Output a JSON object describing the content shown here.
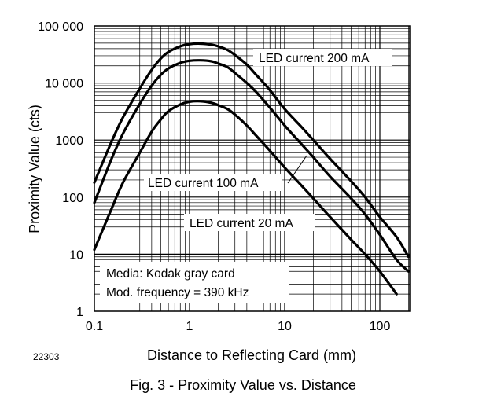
{
  "figure_id": "22303",
  "caption": "Fig. 3 - Proximity Value vs. Distance",
  "chart_data": {
    "type": "line",
    "xscale": "log",
    "yscale": "log",
    "xlabel": "Distance to Reflecting Card (mm)",
    "ylabel": "Proximity Value (cts)",
    "xlim": [
      0.1,
      200
    ],
    "ylim": [
      1,
      100000
    ],
    "grid": true,
    "x_ticks": [
      0.1,
      1,
      10,
      100
    ],
    "x_tick_labels": [
      "0.1",
      "1",
      "10",
      "100"
    ],
    "y_ticks": [
      1,
      10,
      100,
      1000,
      10000,
      100000
    ],
    "y_tick_labels": [
      "1",
      "10",
      "100",
      "1000",
      "10 000",
      "100 000"
    ],
    "series": [
      {
        "name": "LED current 200 mA",
        "x": [
          0.1,
          0.15,
          0.2,
          0.3,
          0.4,
          0.5,
          0.6,
          0.8,
          1.0,
          1.3,
          1.7,
          2.0,
          2.5,
          3,
          4,
          5,
          7,
          10,
          15,
          20,
          30,
          50,
          70,
          100,
          150,
          200
        ],
        "y": [
          180,
          900,
          2500,
          8000,
          17000,
          27000,
          35000,
          44000,
          48000,
          49000,
          47000,
          44000,
          38000,
          31000,
          21000,
          14000,
          7500,
          3500,
          1700,
          1000,
          470,
          190,
          100,
          45,
          20,
          9
        ]
      },
      {
        "name": "LED current 100 mA",
        "x": [
          0.1,
          0.15,
          0.2,
          0.3,
          0.4,
          0.5,
          0.6,
          0.8,
          1.0,
          1.3,
          1.7,
          2.0,
          2.5,
          3,
          4,
          5,
          7,
          10,
          15,
          20,
          30,
          50,
          70,
          100,
          150,
          200
        ],
        "y": [
          80,
          450,
          1300,
          4300,
          9000,
          14000,
          18000,
          22500,
          24500,
          25000,
          24000,
          22000,
          19000,
          15000,
          10000,
          7000,
          3700,
          1800,
          850,
          500,
          230,
          95,
          50,
          22,
          8,
          5
        ]
      },
      {
        "name": "LED current 20 mA",
        "x": [
          0.1,
          0.15,
          0.2,
          0.3,
          0.4,
          0.5,
          0.6,
          0.8,
          1.0,
          1.3,
          1.7,
          2.0,
          2.5,
          3,
          4,
          5,
          7,
          10,
          15,
          20,
          30,
          50,
          70,
          100,
          150
        ],
        "y": [
          12,
          60,
          180,
          600,
          1400,
          2300,
          3200,
          4200,
          4700,
          4800,
          4500,
          4100,
          3500,
          2800,
          1800,
          1200,
          650,
          330,
          160,
          95,
          45,
          18,
          10,
          5,
          2
        ]
      }
    ],
    "annotations": [
      "LED current 200 mA",
      "LED current 100 mA",
      "LED current 20 mA",
      "Media: Kodak gray card",
      "Mod. frequency = 390 kHz"
    ]
  }
}
